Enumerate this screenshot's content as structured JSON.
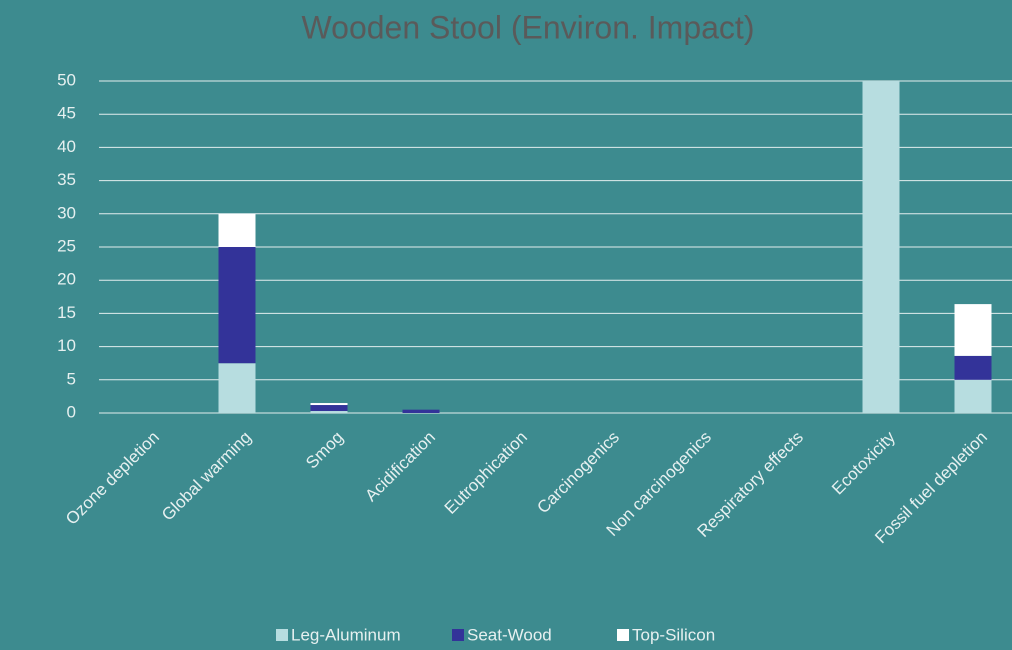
{
  "chart_data": {
    "type": "stacked_bar",
    "title": "Wooden Stool (Environ. Impact)",
    "categories": [
      "Ozone depletion",
      "Global warming",
      "Smog",
      "Acidification",
      "Eutrophication",
      "Carcinogenics",
      "Non carcinogenics",
      "Respiratory effects",
      "Ecotoxicity",
      "Fossil fuel depletion"
    ],
    "series": [
      {
        "name": "Leg-Aluminum",
        "color": "#b7dde0",
        "values": [
          0,
          7.5,
          0.3,
          0,
          0,
          0,
          0,
          0,
          50,
          5
        ]
      },
      {
        "name": "Seat-Wood",
        "color": "#333399",
        "values": [
          0,
          17.5,
          0.9,
          0.5,
          0,
          0,
          0,
          0,
          0,
          3.6
        ]
      },
      {
        "name": "Top-Silicon",
        "color": "#ffffff",
        "values": [
          0,
          5,
          0.3,
          0,
          0,
          0,
          0,
          0,
          0,
          7.8
        ]
      }
    ],
    "ylim": [
      0,
      50
    ],
    "yticks": [
      0,
      5,
      10,
      15,
      20,
      25,
      30,
      35,
      40,
      45,
      50
    ],
    "grid": true,
    "legend": "bottom"
  }
}
